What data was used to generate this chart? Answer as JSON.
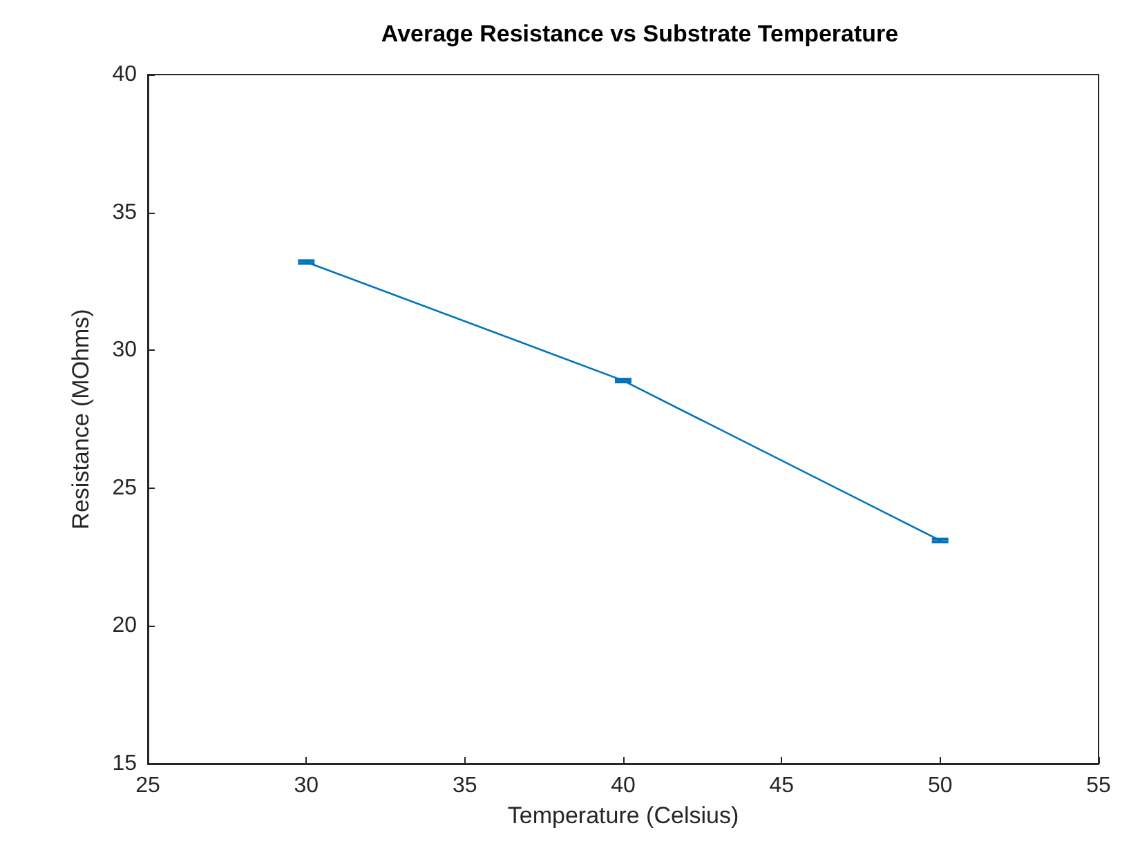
{
  "chart_data": {
    "type": "line",
    "title": "Average Resistance vs Substrate Temperature",
    "xlabel": "Temperature (Celsius)",
    "ylabel": "Resistance (MOhms)",
    "x": [
      30,
      40,
      50
    ],
    "series": [
      {
        "color": "#0072bd",
        "values": [
          33.2,
          28.9,
          23.1
        ],
        "errors": [
          0.05,
          0.05,
          0.05
        ]
      }
    ],
    "xlim": [
      25,
      55
    ],
    "xticks": [
      25,
      30,
      35,
      40,
      45,
      50,
      55
    ],
    "ylim": [
      15,
      40
    ],
    "yticks": [
      15,
      20,
      25,
      30,
      35,
      40
    ],
    "grid": false,
    "marker": "none",
    "line_style": "solid"
  }
}
